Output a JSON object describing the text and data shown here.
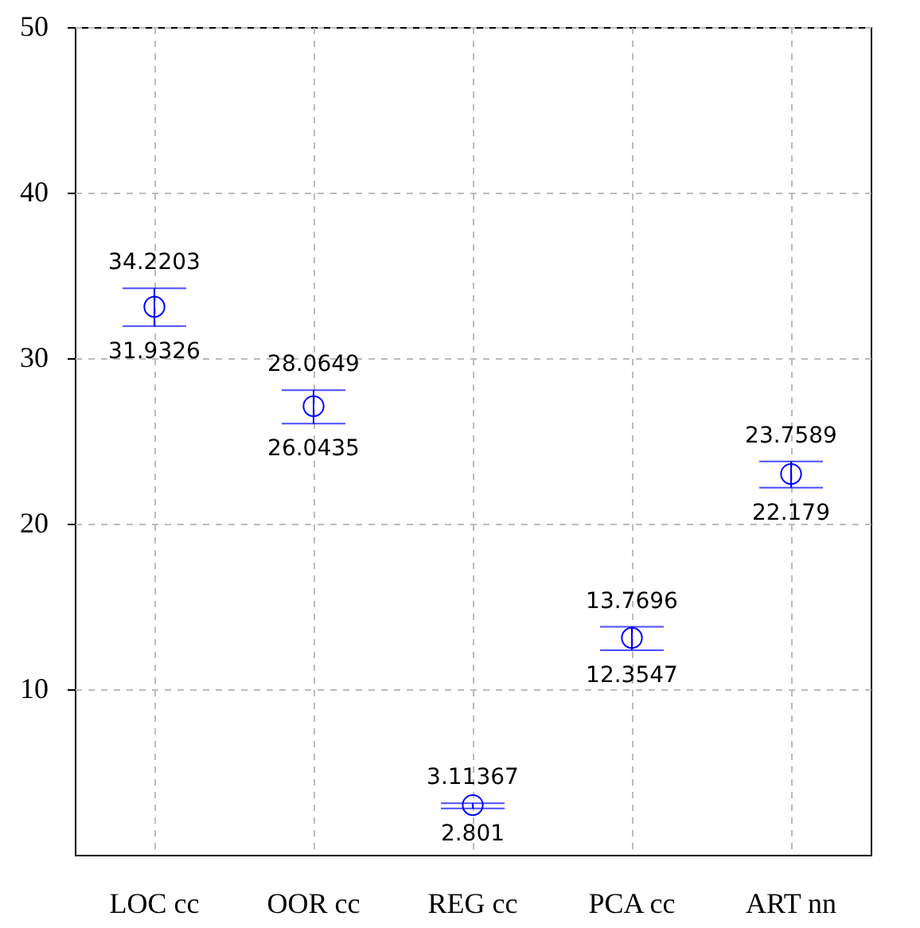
{
  "chart_data": {
    "type": "scatter",
    "categories": [
      "LOC cc",
      "OOR cc",
      "REG cc",
      "PCA cc",
      "ART nn"
    ],
    "values": [
      33.1,
      27.1,
      3.0,
      13.1,
      23.0
    ],
    "errors": [
      [
        31.9326,
        34.2203
      ],
      [
        26.0435,
        28.0649
      ],
      [
        2.801,
        3.11367
      ],
      [
        12.3547,
        13.7696
      ],
      [
        22.179,
        23.7589
      ]
    ],
    "color": "#0000ff",
    "marker": "circle",
    "ylim": [
      0,
      50
    ],
    "yticks": [
      10,
      20,
      30,
      40,
      50
    ],
    "grid": true,
    "annotations": [
      {
        "text": "34.2203",
        "x": "LOC cc",
        "y": 34.2203
      },
      {
        "text": "31.9326",
        "x": "LOC cc",
        "y": 31.9326
      },
      {
        "text": "28.0649",
        "x": "OOR cc",
        "y": 28.0649
      },
      {
        "text": "26.0435",
        "x": "OOR cc",
        "y": 26.0435
      },
      {
        "text": "3.11367",
        "x": "REG cc",
        "y": 3.11367
      },
      {
        "text": "2.801",
        "x": "REG cc",
        "y": 2.801
      },
      {
        "text": "13.7696",
        "x": "PCA cc",
        "y": 13.7696
      },
      {
        "text": "12.3547",
        "x": "PCA cc",
        "y": 12.3547
      },
      {
        "text": "23.7589",
        "x": "ART nn",
        "y": 23.7589
      },
      {
        "text": "22.179",
        "x": "ART nn",
        "y": 22.179
      }
    ]
  }
}
